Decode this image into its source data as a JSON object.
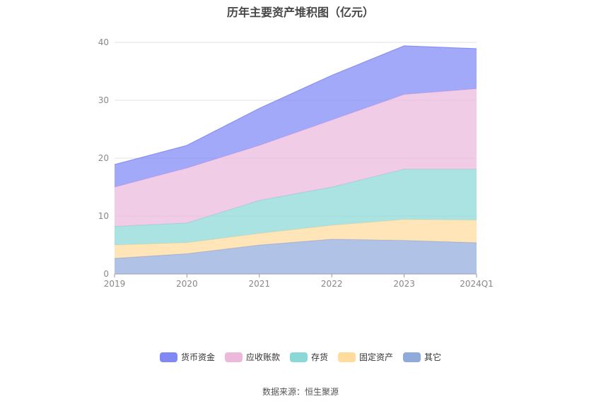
{
  "chart_data": {
    "type": "area",
    "title": "历年主要资产堆积图（亿元）",
    "xlabel": "",
    "ylabel": "",
    "categories": [
      "2019",
      "2020",
      "2021",
      "2022",
      "2023",
      "2024Q1"
    ],
    "ylim": [
      0,
      40
    ],
    "yticks": [
      0,
      10,
      20,
      30,
      40
    ],
    "stacked": true,
    "grid": true,
    "legend_position": "bottom",
    "series": [
      {
        "name": "其它",
        "color": "#91aadc",
        "values": [
          2.7,
          3.5,
          5.0,
          6.0,
          5.8,
          5.4
        ]
      },
      {
        "name": "固定资产",
        "color": "#ffdb9c",
        "values": [
          2.3,
          1.9,
          2.0,
          2.4,
          3.6,
          3.9
        ]
      },
      {
        "name": "存货",
        "color": "#8ad8d8",
        "values": [
          3.2,
          3.4,
          5.7,
          6.6,
          8.7,
          8.8
        ]
      },
      {
        "name": "应收账款",
        "color": "#ecb8dc",
        "values": [
          6.8,
          9.5,
          9.5,
          11.6,
          12.9,
          13.9
        ]
      },
      {
        "name": "货币资金",
        "color": "#8088f6",
        "values": [
          3.9,
          3.9,
          6.4,
          7.7,
          8.4,
          6.9
        ]
      }
    ]
  },
  "legend_order": [
    "货币资金",
    "应收账款",
    "存货",
    "固定资产",
    "其它"
  ],
  "source": "数据来源：恒生聚源"
}
